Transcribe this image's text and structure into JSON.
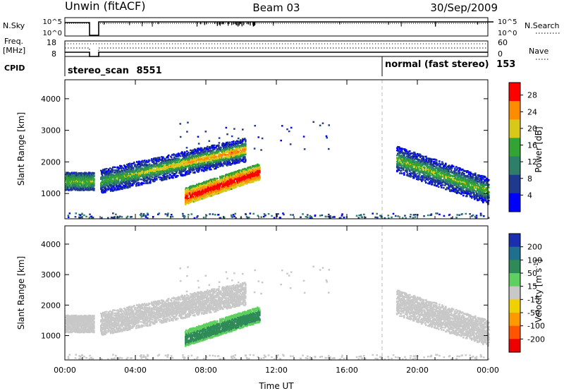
{
  "header": {
    "title_left": "Unwin (fitACF)",
    "title_center": "Beam 03",
    "title_right": "30/Sep/2009"
  },
  "status_panel": {
    "label_nsky": "N.Sky",
    "label_freq": "Freq.",
    "label_mhz": "[MHz]",
    "label_cpid": "CPID",
    "label_nsearch": "N.Search",
    "label_nave": "Nave",
    "noise_ticks_left": [
      "10^5",
      "10^0"
    ],
    "noise_ticks_right": [
      "10^5",
      "10^0"
    ],
    "freq_ticks": [
      "18",
      "8"
    ],
    "nave_ticks": [
      "60",
      "0"
    ],
    "cpid": [
      {
        "name": "stereo_scan",
        "id": "8551",
        "start_hour": 0
      },
      {
        "name": "normal (fast stereo)",
        "id": "153",
        "start_hour": 18
      }
    ]
  },
  "chart_data": [
    {
      "type": "heatmap",
      "panel": "power",
      "title": "",
      "xlabel": "Time UT",
      "ylabel": "Slant Range [km]",
      "xlim": [
        0,
        24
      ],
      "ylim": [
        200,
        4600
      ],
      "x_ticks": [
        "00:00",
        "04:00",
        "08:00",
        "12:00",
        "16:00",
        "20:00",
        "00:00"
      ],
      "y_ticks": [
        1000,
        2000,
        3000,
        4000
      ],
      "colorbar": {
        "label": "Power [dB]",
        "ticks": [
          4,
          8,
          12,
          16,
          20,
          24,
          28
        ],
        "range": [
          0,
          31
        ],
        "colors": [
          "#0000ff",
          "#1f3a8c",
          "#2d7f6a",
          "#33a333",
          "#d8c81a",
          "#ff8c00",
          "#ff0000"
        ]
      },
      "regions": [
        {
          "name": "early-echo-band",
          "t_start": 0.0,
          "t_end": 1.8,
          "r_center": 1380,
          "r_width": 500
        },
        {
          "name": "rising-echo-band",
          "t_start": 2.0,
          "t_end": 10.2,
          "r_start": 1400,
          "r_end": 2400,
          "peak_db": 22
        },
        {
          "name": "low-range-patch",
          "t_start": 6.8,
          "t_end": 11.0,
          "r_start": 780,
          "r_end": 1600,
          "peak_db": 30
        },
        {
          "name": "evening-echo-band",
          "t_start": 18.8,
          "t_end": 24.0,
          "r_start": 2100,
          "r_end": 1100,
          "peak_db": 18
        }
      ],
      "data_gap": [
        1.6,
        2.0
      ]
    },
    {
      "type": "heatmap",
      "panel": "velocity",
      "title": "",
      "xlabel": "Time UT",
      "ylabel": "Slant Range [km]",
      "xlim": [
        0,
        24
      ],
      "ylim": [
        200,
        4600
      ],
      "x_ticks": [
        "00:00",
        "04:00",
        "08:00",
        "12:00",
        "16:00",
        "20:00",
        "00:00"
      ],
      "y_ticks": [
        1000,
        2000,
        3000,
        4000
      ],
      "colorbar": {
        "label": "Velocity [m s^-1]",
        "ticks": [
          200,
          100,
          50,
          15,
          -15,
          -50,
          -100,
          -200
        ],
        "colors": [
          "#1a2fb0",
          "#1f6f8f",
          "#2e8b57",
          "#5fd05f",
          "#c8c8c8",
          "#f0d000",
          "#ff9900",
          "#ff5500",
          "#ee0000"
        ]
      },
      "regions": [
        {
          "name": "ground-scatter-band",
          "t_start": 0.0,
          "t_end": 10.0,
          "r_start": 1300,
          "r_end": 2500,
          "velocity": 0
        },
        {
          "name": "positive-velocity-patch",
          "t_start": 6.8,
          "t_end": 11.0,
          "r_start": 780,
          "r_end": 1600,
          "velocity": 60
        },
        {
          "name": "evening-ground-scatter",
          "t_start": 18.8,
          "t_end": 24.0,
          "r_start": 2100,
          "r_end": 1100,
          "velocity": 0
        }
      ],
      "data_gap": [
        1.6,
        2.0
      ]
    }
  ],
  "panel_labels": {
    "power_cbar_label": "Power [dB]",
    "velocity_cbar_label": "Velocity [m s",
    "velocity_cbar_sup": "-1",
    "velocity_cbar_close": "]",
    "xlabel": "Time UT",
    "ylabel": "Slant Range [km]"
  }
}
